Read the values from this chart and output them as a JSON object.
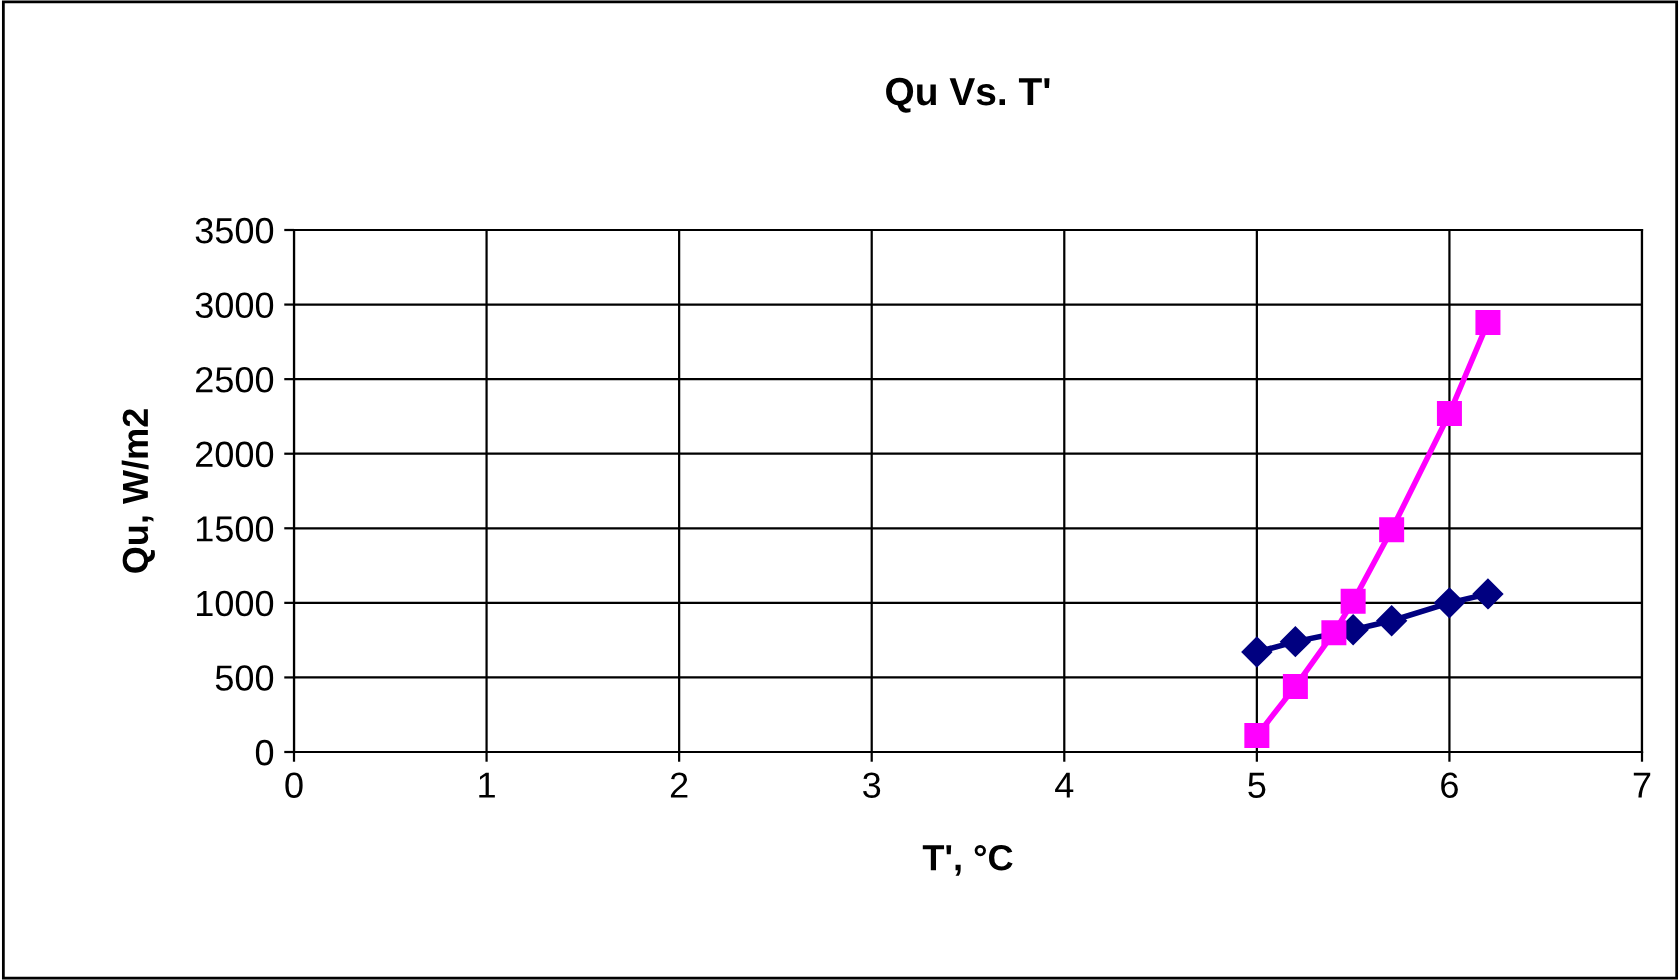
{
  "chart_data": {
    "type": "line",
    "title": "Qu Vs. T'",
    "xlabel": "T', °C",
    "ylabel": "Qu, W/m2",
    "x": [
      5.0,
      5.2,
      5.4,
      5.5,
      5.7,
      6.0,
      6.2
    ],
    "series": [
      {
        "color": "#000080",
        "marker": "diamond",
        "values": [
          670,
          740,
          null,
          820,
          880,
          1000,
          1060
        ]
      },
      {
        "color": "#ff00ff",
        "marker": "square",
        "values": [
          110,
          440,
          800,
          1010,
          1490,
          2270,
          2880
        ]
      }
    ],
    "xlim": [
      0,
      7
    ],
    "xticks": [
      0,
      1,
      2,
      3,
      4,
      5,
      6,
      7
    ],
    "ylim": [
      0,
      3500
    ],
    "yticks": [
      0,
      500,
      1000,
      1500,
      2000,
      2500,
      3000,
      3500
    ],
    "grid": true,
    "line_style": "solid"
  }
}
